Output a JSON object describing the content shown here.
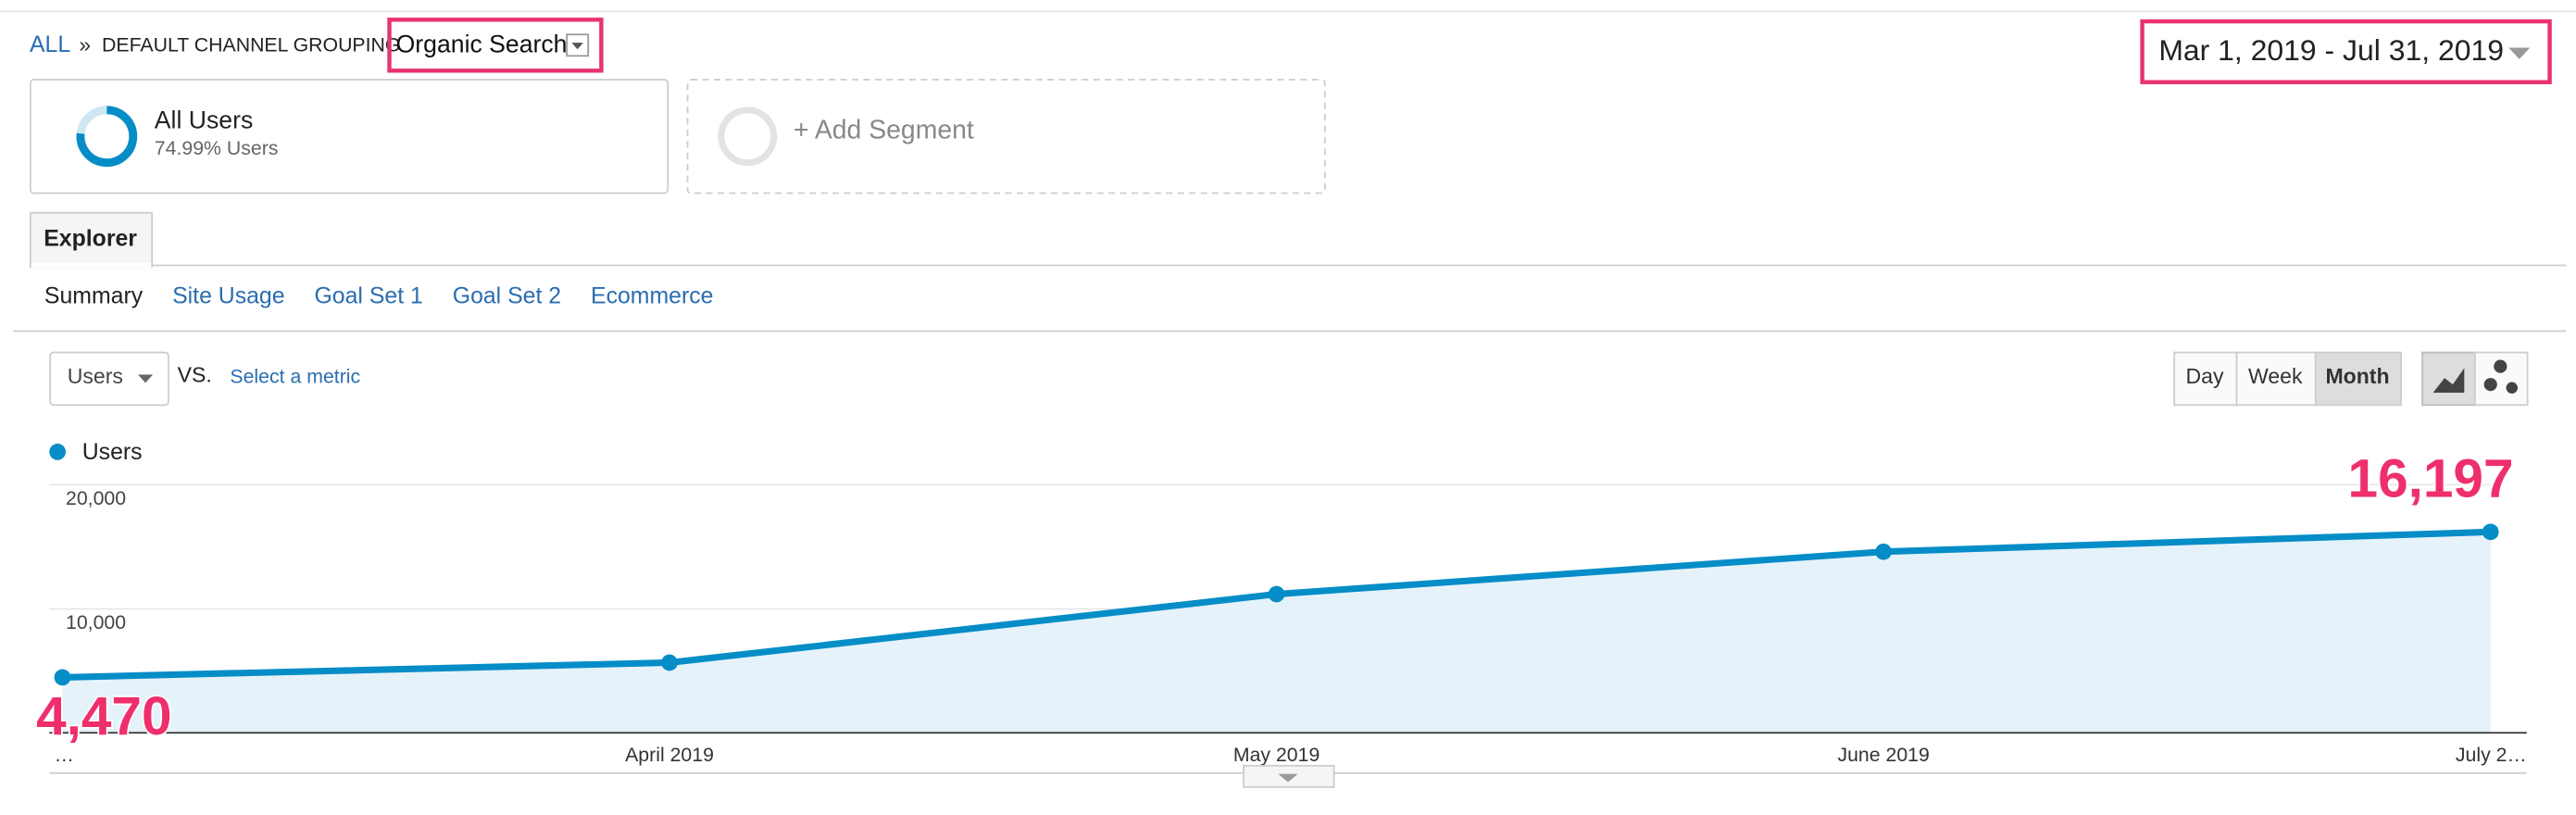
{
  "ui": {
    "breadcrumb": {
      "root": "ALL",
      "separator": "»",
      "grouping": "DEFAULT CHANNEL GROUPING",
      "selected": "Organic Search"
    },
    "date_range": "Mar 1, 2019 - Jul 31, 2019",
    "segments": [
      {
        "name": "All Users",
        "detail": "74.99% Users"
      },
      {
        "name": "+ Add Segment"
      }
    ],
    "tab": "Explorer",
    "subtabs": [
      "Summary",
      "Site Usage",
      "Goal Set 1",
      "Goal Set 2",
      "Ecommerce"
    ],
    "metric": "Users",
    "vs": "VS.",
    "select_metric": "Select a metric",
    "periods": [
      "Day",
      "Week",
      "Month"
    ]
  },
  "chart_data": {
    "type": "line",
    "categories": [
      "…",
      "April 2019",
      "May 2019",
      "June 2019",
      "July 2…"
    ],
    "series": [
      {
        "name": "Users",
        "color": "#058dc7",
        "values": [
          4470,
          5660,
          11180,
          14600,
          16197
        ],
        "value_labels": [
          "4,470",
          null,
          null,
          null,
          "16,197"
        ]
      }
    ],
    "ylim": [
      0,
      20000
    ],
    "yticks": [
      {
        "value": 10000,
        "label": "10,000"
      },
      {
        "value": 20000,
        "label": "20,000"
      }
    ],
    "grid": true,
    "area": true
  }
}
